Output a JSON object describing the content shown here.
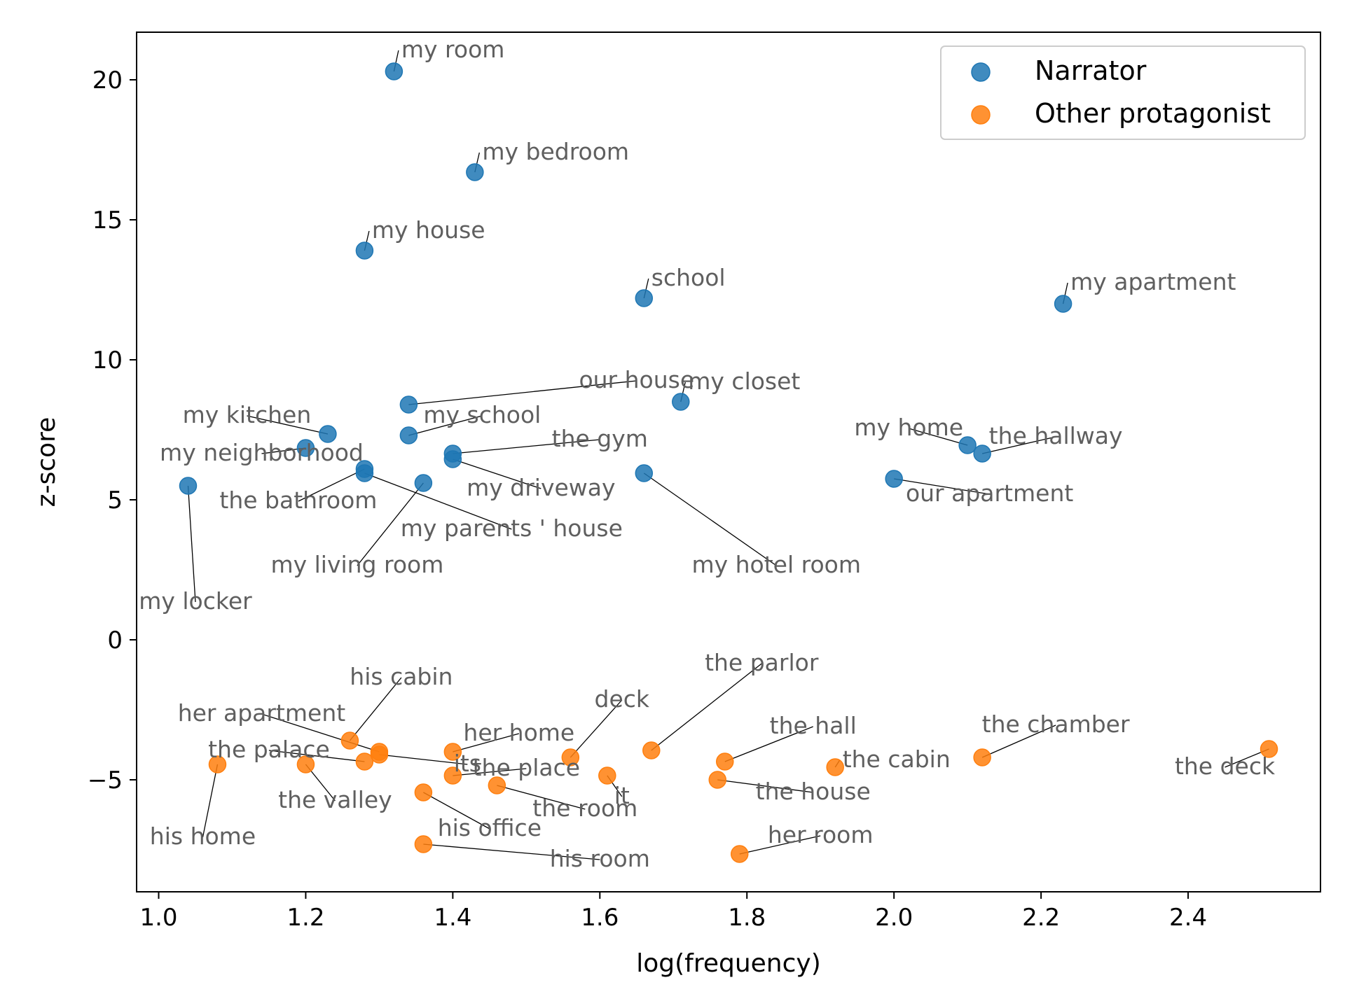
{
  "chart_data": {
    "type": "scatter",
    "xlabel": "log(frequency)",
    "ylabel": "z-score",
    "xlim": [
      0.97,
      2.58
    ],
    "ylim": [
      -9.0,
      21.7
    ],
    "xticks": [
      1.0,
      1.2,
      1.4,
      1.6,
      1.8,
      2.0,
      2.2,
      2.4
    ],
    "xtick_labels": [
      "1.0",
      "1.2",
      "1.4",
      "1.6",
      "1.8",
      "2.0",
      "2.2",
      "2.4"
    ],
    "yticks": [
      -5,
      0,
      5,
      10,
      15,
      20
    ],
    "ytick_labels": [
      "−5",
      "0",
      "5",
      "10",
      "15",
      "20"
    ],
    "grid": false,
    "legend_position": "top-right",
    "series": [
      {
        "name": "Narrator",
        "color": "#1f77b4",
        "points": [
          {
            "label": "my room",
            "x": 1.32,
            "y": 20.3,
            "lx": 1.33,
            "ly": 20.8,
            "anchor": "start"
          },
          {
            "label": "my bedroom",
            "x": 1.43,
            "y": 16.7,
            "lx": 1.44,
            "ly": 17.15,
            "anchor": "start"
          },
          {
            "label": "my house",
            "x": 1.28,
            "y": 13.9,
            "lx": 1.29,
            "ly": 14.35,
            "anchor": "start"
          },
          {
            "label": "school",
            "x": 1.66,
            "y": 12.2,
            "lx": 1.67,
            "ly": 12.65,
            "anchor": "start"
          },
          {
            "label": "my apartment",
            "x": 2.23,
            "y": 12.0,
            "lx": 2.24,
            "ly": 12.5,
            "anchor": "start"
          },
          {
            "label": "our house",
            "x": 1.34,
            "y": 8.4,
            "lx": 1.65,
            "ly": 9.0,
            "anchor": "middle"
          },
          {
            "label": "my closet",
            "x": 1.71,
            "y": 8.5,
            "lx": 1.72,
            "ly": 8.95,
            "anchor": "start"
          },
          {
            "label": "my kitchen",
            "x": 1.23,
            "y": 7.35,
            "lx": 1.12,
            "ly": 7.75,
            "anchor": "middle"
          },
          {
            "label": "my school",
            "x": 1.34,
            "y": 7.3,
            "lx": 1.44,
            "ly": 7.75,
            "anchor": "middle"
          },
          {
            "label": "my home",
            "x": 2.1,
            "y": 6.95,
            "lx": 2.02,
            "ly": 7.3,
            "anchor": "middle"
          },
          {
            "label": "the hallway",
            "x": 2.12,
            "y": 6.65,
            "lx": 2.22,
            "ly": 7.0,
            "anchor": "middle"
          },
          {
            "label": "my neighborhood",
            "x": 1.2,
            "y": 6.85,
            "lx": 1.14,
            "ly": 6.4,
            "anchor": "middle"
          },
          {
            "label": "the gym",
            "x": 1.4,
            "y": 6.65,
            "lx": 1.6,
            "ly": 6.9,
            "anchor": "middle"
          },
          {
            "label": "my driveway",
            "x": 1.4,
            "y": 6.45,
            "lx": 1.52,
            "ly": 5.15,
            "anchor": "middle"
          },
          {
            "label": "the bathroom",
            "x": 1.28,
            "y": 6.1,
            "lx": 1.19,
            "ly": 4.7,
            "anchor": "middle"
          },
          {
            "label": "my parents ' house",
            "x": 1.28,
            "y": 5.95,
            "lx": 1.48,
            "ly": 3.7,
            "anchor": "middle"
          },
          {
            "label": "my living room",
            "x": 1.36,
            "y": 5.6,
            "lx": 1.27,
            "ly": 2.4,
            "anchor": "middle"
          },
          {
            "label": "my hotel room",
            "x": 1.66,
            "y": 5.95,
            "lx": 1.84,
            "ly": 2.4,
            "anchor": "middle"
          },
          {
            "label": "our apartment",
            "x": 2.0,
            "y": 5.75,
            "lx": 2.13,
            "ly": 4.95,
            "anchor": "middle"
          },
          {
            "label": "my locker",
            "x": 1.04,
            "y": 5.5,
            "lx": 1.05,
            "ly": 1.1,
            "anchor": "middle"
          }
        ]
      },
      {
        "name": "Other protagonist",
        "color": "#ff7f0e",
        "points": [
          {
            "label": "the deck",
            "x": 2.51,
            "y": -3.9,
            "lx": 2.45,
            "ly": -4.8,
            "anchor": "middle"
          },
          {
            "label": "the chamber",
            "x": 2.12,
            "y": -4.2,
            "lx": 2.22,
            "ly": -3.3,
            "anchor": "middle"
          },
          {
            "label": "the cabin",
            "x": 1.92,
            "y": -4.55,
            "lx": 1.93,
            "ly": -4.55,
            "anchor": "start"
          },
          {
            "label": "the hall",
            "x": 1.77,
            "y": -4.35,
            "lx": 1.89,
            "ly": -3.35,
            "anchor": "middle"
          },
          {
            "label": "the house",
            "x": 1.76,
            "y": -5.0,
            "lx": 1.89,
            "ly": -5.7,
            "anchor": "middle"
          },
          {
            "label": "her room",
            "x": 1.79,
            "y": -7.65,
            "lx": 1.9,
            "ly": -7.25,
            "anchor": "middle"
          },
          {
            "label": "the parlor",
            "x": 1.67,
            "y": -3.95,
            "lx": 1.82,
            "ly": -1.1,
            "anchor": "middle"
          },
          {
            "label": "deck",
            "x": 1.56,
            "y": -4.2,
            "lx": 1.63,
            "ly": -2.4,
            "anchor": "middle"
          },
          {
            "label": "it",
            "x": 1.61,
            "y": -4.85,
            "lx": 1.63,
            "ly": -5.85,
            "anchor": "middle"
          },
          {
            "label": "the room",
            "x": 1.46,
            "y": -5.2,
            "lx": 1.58,
            "ly": -6.3,
            "anchor": "middle"
          },
          {
            "label": "her home",
            "x": 1.4,
            "y": -4.0,
            "lx": 1.49,
            "ly": -3.6,
            "anchor": "middle"
          },
          {
            "label": "the place",
            "x": 1.4,
            "y": -4.85,
            "lx": 1.5,
            "ly": -4.85,
            "anchor": "middle"
          },
          {
            "label": "his office",
            "x": 1.36,
            "y": -5.45,
            "lx": 1.45,
            "ly": -7.0,
            "anchor": "middle"
          },
          {
            "label": "his room",
            "x": 1.36,
            "y": -7.3,
            "lx": 1.6,
            "ly": -8.1,
            "anchor": "middle"
          },
          {
            "label": "his cabin",
            "x": 1.26,
            "y": -3.6,
            "lx": 1.33,
            "ly": -1.6,
            "anchor": "middle"
          },
          {
            "label": "her apartment",
            "x": 1.3,
            "y": -4.0,
            "lx": 1.14,
            "ly": -2.9,
            "anchor": "middle"
          },
          {
            "label": "its",
            "x": 1.3,
            "y": -4.1,
            "lx": 1.42,
            "ly": -4.7,
            "anchor": "middle"
          },
          {
            "label": "the palace",
            "x": 1.28,
            "y": -4.35,
            "lx": 1.15,
            "ly": -4.2,
            "anchor": "middle"
          },
          {
            "label": "the valley",
            "x": 1.2,
            "y": -4.45,
            "lx": 1.24,
            "ly": -6.0,
            "anchor": "middle"
          },
          {
            "label": "his home",
            "x": 1.08,
            "y": -4.45,
            "lx": 1.06,
            "ly": -7.3,
            "anchor": "middle"
          }
        ]
      }
    ]
  }
}
